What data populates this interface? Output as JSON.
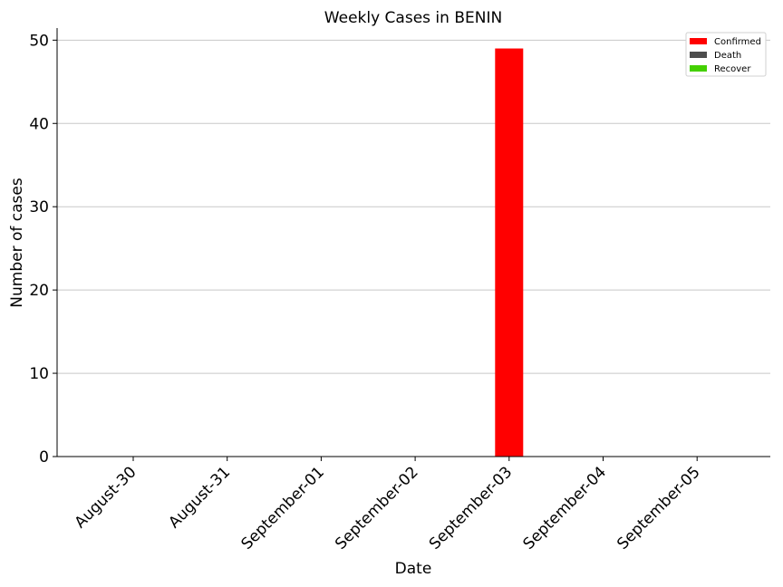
{
  "chart_data": {
    "type": "bar",
    "title": "Weekly Cases in BENIN",
    "xlabel": "Date",
    "ylabel": "Number of cases",
    "categories": [
      "August-30",
      "August-31",
      "September-01",
      "September-02",
      "September-03",
      "September-04",
      "September-05"
    ],
    "series": [
      {
        "name": "Confirmed",
        "color": "#ff0000",
        "values": [
          0,
          0,
          0,
          0,
          49,
          0,
          0
        ]
      },
      {
        "name": "Death",
        "color": "#4d4d4d",
        "values": [
          0,
          0,
          0,
          0,
          0,
          0,
          0
        ]
      },
      {
        "name": "Recover",
        "color": "#44d000",
        "values": [
          0,
          0,
          0,
          0,
          0,
          0,
          0
        ]
      }
    ],
    "ylim": [
      0,
      51.45
    ],
    "yticks": [
      0,
      10,
      20,
      30,
      40,
      50
    ],
    "grid": "y",
    "legend": "top-right"
  }
}
